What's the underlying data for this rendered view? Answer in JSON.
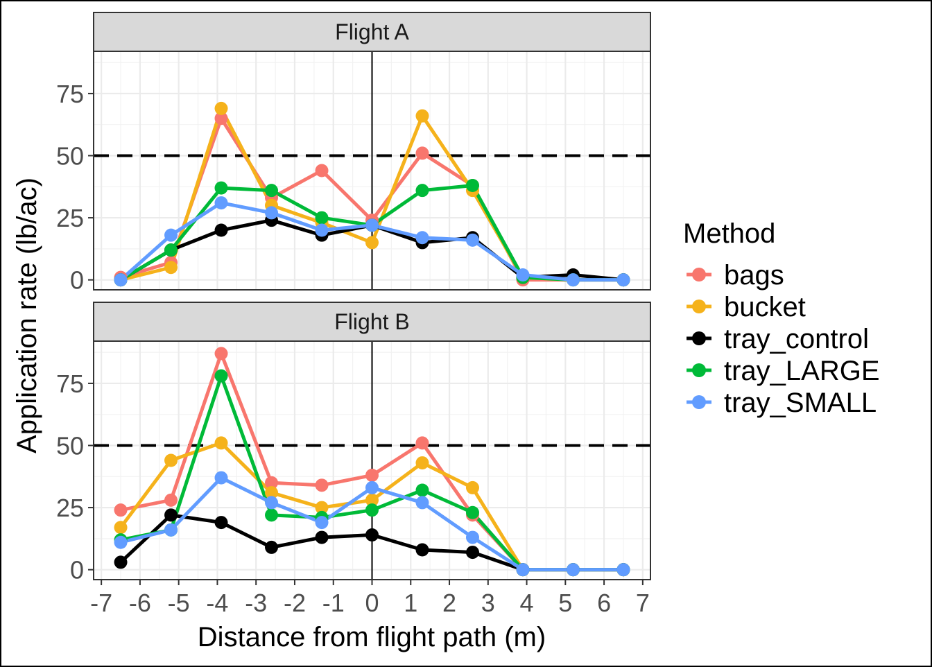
{
  "chart_data": [
    {
      "type": "line",
      "panel_title": "Flight A",
      "x": [
        -6.5,
        -5.2,
        -3.9,
        -2.6,
        -1.3,
        0,
        1.3,
        2.6,
        3.9,
        5.2,
        6.5
      ],
      "series": [
        {
          "name": "bags",
          "color": "#F8766D",
          "values": [
            1,
            7,
            65,
            33,
            44,
            24,
            51,
            38,
            0,
            0,
            0
          ]
        },
        {
          "name": "bucket",
          "color": "#F5B21B",
          "values": [
            0,
            5,
            69,
            30,
            23,
            15,
            66,
            36,
            1,
            0,
            0
          ]
        },
        {
          "name": "tray_control",
          "color": "#000000",
          "values": [
            0,
            12,
            20,
            24,
            18,
            22,
            15,
            17,
            1,
            2,
            0
          ]
        },
        {
          "name": "tray_LARGE",
          "color": "#00BA38",
          "values": [
            0,
            12,
            37,
            36,
            25,
            22,
            36,
            38,
            1,
            0,
            0
          ]
        },
        {
          "name": "tray_SMALL",
          "color": "#619CFF",
          "values": [
            0,
            18,
            31,
            27,
            20,
            22,
            17,
            16,
            2,
            0,
            0
          ]
        }
      ],
      "reference_line_y": 50,
      "reference_line_x": 0
    },
    {
      "type": "line",
      "panel_title": "Flight B",
      "x": [
        -6.5,
        -5.2,
        -3.9,
        -2.6,
        -1.3,
        0,
        1.3,
        2.6,
        3.9,
        5.2,
        6.5
      ],
      "series": [
        {
          "name": "bags",
          "color": "#F8766D",
          "values": [
            24,
            28,
            87,
            35,
            34,
            38,
            51,
            22,
            0,
            0,
            0
          ]
        },
        {
          "name": "bucket",
          "color": "#F5B21B",
          "values": [
            17,
            44,
            51,
            31,
            25,
            28,
            43,
            33,
            0,
            0,
            0
          ]
        },
        {
          "name": "tray_control",
          "color": "#000000",
          "values": [
            3,
            22,
            19,
            9,
            13,
            14,
            8,
            7,
            0,
            0,
            0
          ]
        },
        {
          "name": "tray_LARGE",
          "color": "#00BA38",
          "values": [
            12,
            16,
            78,
            22,
            21,
            24,
            32,
            23,
            0,
            0,
            0
          ]
        },
        {
          "name": "tray_SMALL",
          "color": "#619CFF",
          "values": [
            11,
            16,
            37,
            27,
            19,
            33,
            27,
            13,
            0,
            0,
            0
          ]
        }
      ],
      "reference_line_y": 50,
      "reference_line_x": 0
    }
  ],
  "axes": {
    "xlabel": "Distance from flight path (m)",
    "ylabel": "Application rate (lb/ac)",
    "xlim": [
      -7.2,
      7.2
    ],
    "ylim": [
      -4,
      92
    ],
    "x_ticks": [
      -7,
      -6,
      -5,
      -4,
      -3,
      -2,
      -1,
      0,
      1,
      2,
      3,
      4,
      5,
      6,
      7
    ],
    "y_ticks": [
      0,
      25,
      50,
      75
    ],
    "grid": true
  },
  "legend": {
    "title": "Method",
    "placement": "right",
    "items": [
      "bags",
      "bucket",
      "tray_control",
      "tray_LARGE",
      "tray_SMALL"
    ]
  }
}
